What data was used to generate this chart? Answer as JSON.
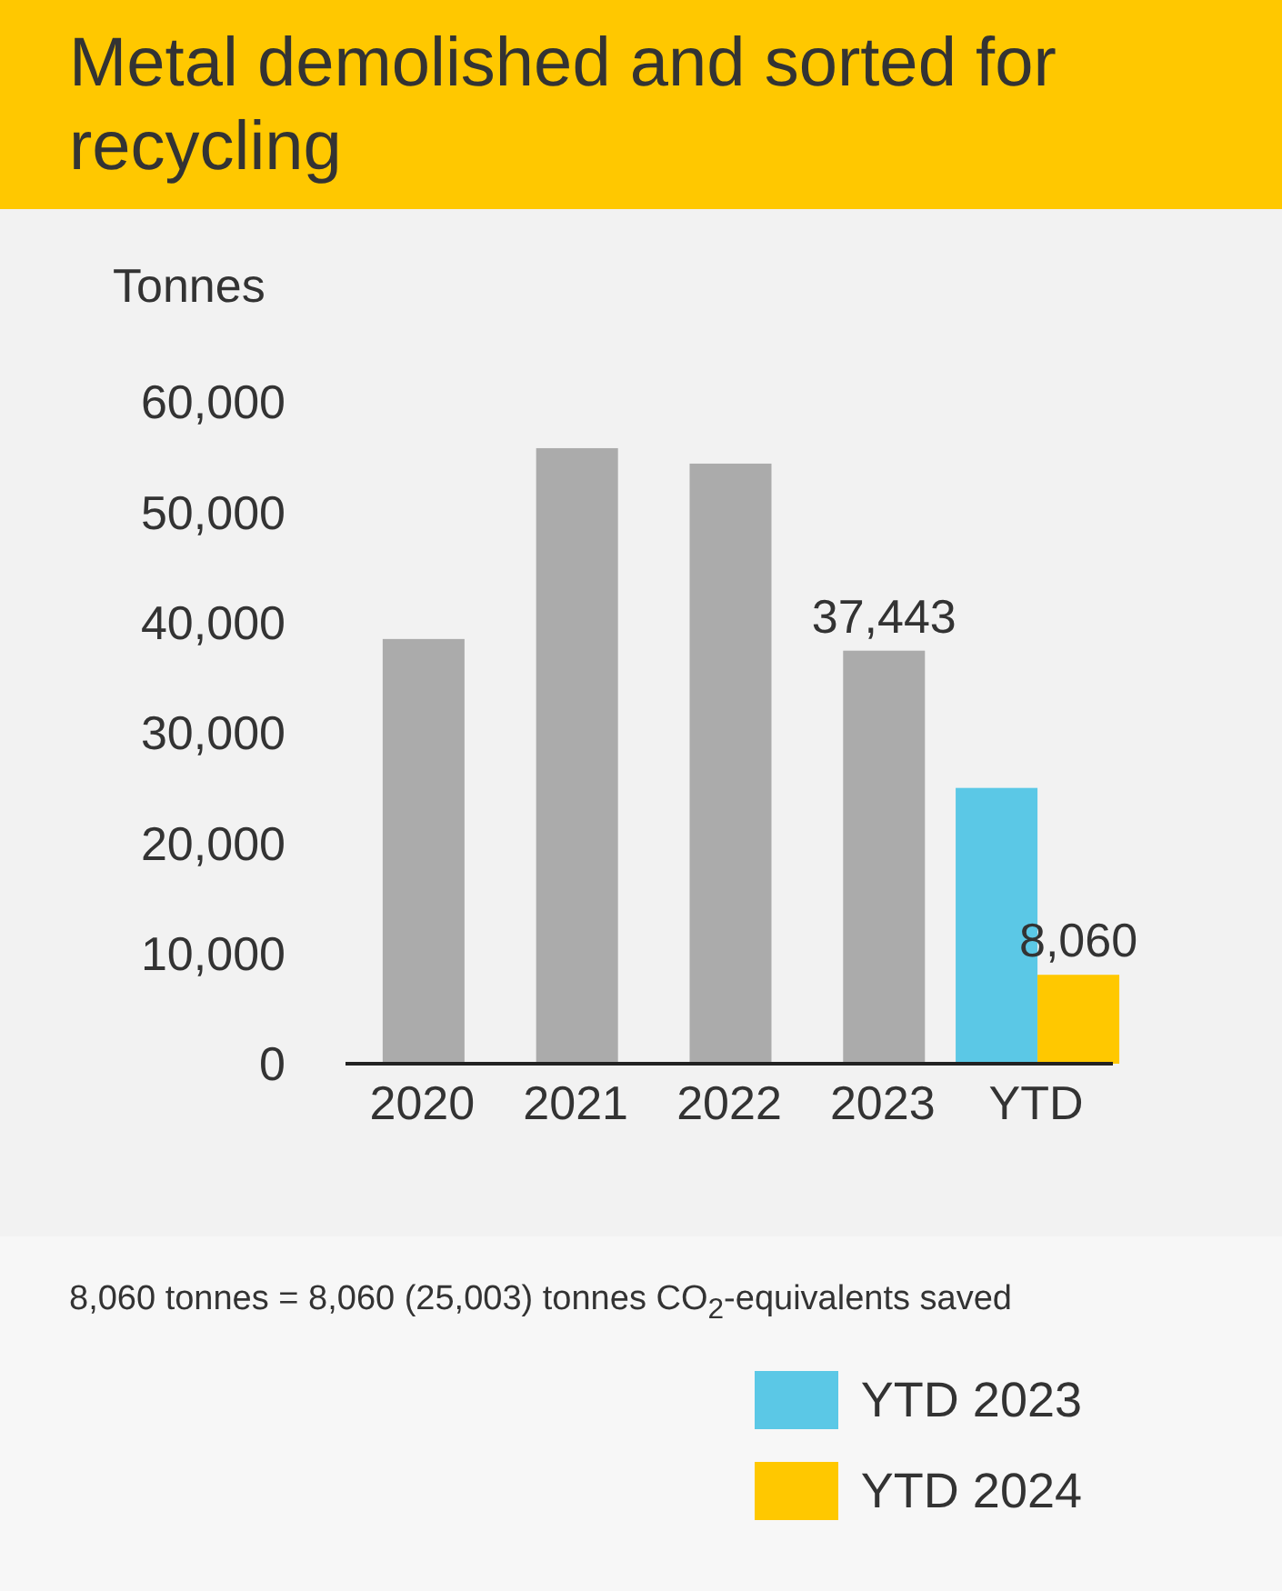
{
  "chart_data": {
    "type": "bar",
    "title": "Metal demolished and sorted for recycling",
    "ylabel": "Tonnes",
    "categories": [
      "2020",
      "2021",
      "2022",
      "2023",
      "YTD"
    ],
    "series": [
      {
        "color": "#ababab",
        "values": [
          38500,
          55800,
          54400,
          37443,
          null
        ],
        "value_labels": [
          null,
          null,
          null,
          "37,443",
          null
        ]
      },
      {
        "name": "YTD 2023",
        "color": "#5bc8e6",
        "values": [
          null,
          null,
          null,
          null,
          25000
        ]
      },
      {
        "name": "YTD 2024",
        "color": "#ffc800",
        "values": [
          null,
          null,
          null,
          null,
          8060
        ],
        "value_labels": [
          null,
          null,
          null,
          null,
          "8,060"
        ]
      }
    ],
    "ylim": [
      0,
      60000
    ],
    "yticks": [
      0,
      {
        "value": 10000,
        "label": "10,000"
      },
      {
        "value": 20000,
        "label": "20,000"
      },
      {
        "value": 30000,
        "label": "30,000"
      },
      {
        "value": 40000,
        "label": "40,000"
      },
      {
        "value": 50000,
        "label": "50,000"
      },
      {
        "value": 60000,
        "label": "60,000"
      }
    ],
    "grid": false,
    "legend": "bottom right",
    "annotations": [
      "8,060 tonnes = 8,060 (25,003) tonnes CO$_{2}$-equivalents saved"
    ]
  }
}
